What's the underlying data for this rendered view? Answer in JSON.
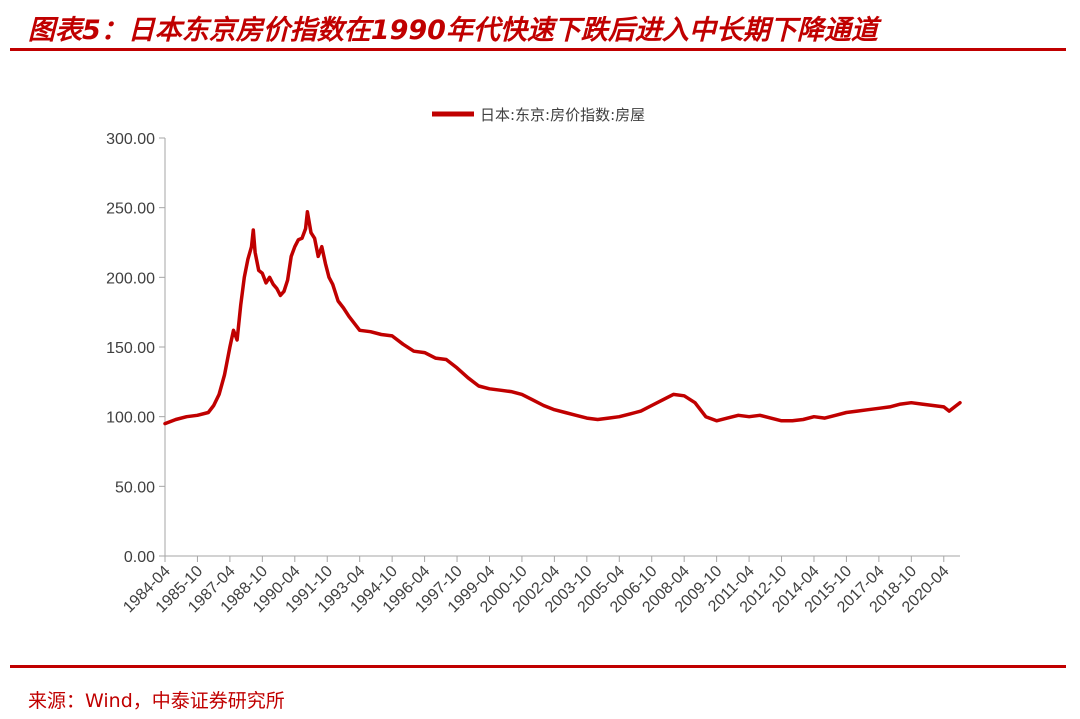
{
  "header": {
    "title": "图表5：日本东京房价指数在1990年代快速下跌后进入中长期下降通道"
  },
  "footer": {
    "source": "来源：Wind，中泰证券研究所"
  },
  "colors": {
    "accent": "#c00000",
    "axis": "#a6a6a6",
    "text": "#404040"
  },
  "chart_data": {
    "type": "line",
    "legend": {
      "position": "top-center"
    },
    "ylim": [
      0,
      300
    ],
    "yticks": [
      "0.00",
      "50.00",
      "100.00",
      "150.00",
      "200.00",
      "250.00",
      "300.00"
    ],
    "xlim": [
      "1984-04",
      "2021-01"
    ],
    "xticks": [
      "1984-04",
      "1985-10",
      "1987-04",
      "1988-10",
      "1990-04",
      "1991-10",
      "1993-04",
      "1994-10",
      "1996-04",
      "1997-10",
      "1999-04",
      "2000-10",
      "2002-04",
      "2003-10",
      "2005-04",
      "2006-10",
      "2008-04",
      "2009-10",
      "2011-04",
      "2012-10",
      "2014-04",
      "2015-10",
      "2017-04",
      "2018-10",
      "2020-04"
    ],
    "grid": false,
    "series": [
      {
        "name": "日本:东京:房价指数:房屋",
        "color": "#c00000",
        "points": [
          [
            "1984-04",
            95
          ],
          [
            "1984-10",
            98
          ],
          [
            "1985-04",
            100
          ],
          [
            "1985-10",
            101
          ],
          [
            "1986-04",
            103
          ],
          [
            "1986-07",
            108
          ],
          [
            "1986-10",
            116
          ],
          [
            "1987-01",
            130
          ],
          [
            "1987-04",
            150
          ],
          [
            "1987-06",
            162
          ],
          [
            "1987-08",
            155
          ],
          [
            "1987-10",
            180
          ],
          [
            "1987-12",
            200
          ],
          [
            "1988-02",
            213
          ],
          [
            "1988-04",
            222
          ],
          [
            "1988-05",
            234
          ],
          [
            "1988-06",
            218
          ],
          [
            "1988-08",
            205
          ],
          [
            "1988-10",
            203
          ],
          [
            "1988-12",
            196
          ],
          [
            "1989-02",
            200
          ],
          [
            "1989-04",
            195
          ],
          [
            "1989-06",
            192
          ],
          [
            "1989-08",
            187
          ],
          [
            "1989-10",
            190
          ],
          [
            "1989-12",
            198
          ],
          [
            "1990-02",
            215
          ],
          [
            "1990-04",
            222
          ],
          [
            "1990-06",
            227
          ],
          [
            "1990-08",
            228
          ],
          [
            "1990-10",
            235
          ],
          [
            "1990-11",
            247
          ],
          [
            "1991-01",
            232
          ],
          [
            "1991-03",
            228
          ],
          [
            "1991-05",
            215
          ],
          [
            "1991-07",
            222
          ],
          [
            "1991-09",
            210
          ],
          [
            "1991-11",
            200
          ],
          [
            "1992-01",
            195
          ],
          [
            "1992-04",
            183
          ],
          [
            "1992-07",
            178
          ],
          [
            "1992-10",
            172
          ],
          [
            "1993-01",
            167
          ],
          [
            "1993-04",
            162
          ],
          [
            "1993-10",
            161
          ],
          [
            "1994-04",
            159
          ],
          [
            "1994-10",
            158
          ],
          [
            "1995-04",
            152
          ],
          [
            "1995-10",
            147
          ],
          [
            "1996-04",
            146
          ],
          [
            "1996-10",
            142
          ],
          [
            "1997-04",
            141
          ],
          [
            "1997-10",
            135
          ],
          [
            "1998-04",
            128
          ],
          [
            "1998-10",
            122
          ],
          [
            "1999-04",
            120
          ],
          [
            "1999-10",
            119
          ],
          [
            "2000-04",
            118
          ],
          [
            "2000-10",
            116
          ],
          [
            "2001-04",
            112
          ],
          [
            "2001-10",
            108
          ],
          [
            "2002-04",
            105
          ],
          [
            "2002-10",
            103
          ],
          [
            "2003-04",
            101
          ],
          [
            "2003-10",
            99
          ],
          [
            "2004-04",
            98
          ],
          [
            "2004-10",
            99
          ],
          [
            "2005-04",
            100
          ],
          [
            "2005-10",
            102
          ],
          [
            "2006-04",
            104
          ],
          [
            "2006-10",
            108
          ],
          [
            "2007-04",
            112
          ],
          [
            "2007-10",
            116
          ],
          [
            "2008-04",
            115
          ],
          [
            "2008-10",
            110
          ],
          [
            "2009-04",
            100
          ],
          [
            "2009-10",
            97
          ],
          [
            "2010-04",
            99
          ],
          [
            "2010-10",
            101
          ],
          [
            "2011-04",
            100
          ],
          [
            "2011-10",
            101
          ],
          [
            "2012-04",
            99
          ],
          [
            "2012-10",
            97
          ],
          [
            "2013-04",
            97
          ],
          [
            "2013-10",
            98
          ],
          [
            "2014-04",
            100
          ],
          [
            "2014-10",
            99
          ],
          [
            "2015-04",
            101
          ],
          [
            "2015-10",
            103
          ],
          [
            "2016-04",
            104
          ],
          [
            "2016-10",
            105
          ],
          [
            "2017-04",
            106
          ],
          [
            "2017-10",
            107
          ],
          [
            "2018-04",
            109
          ],
          [
            "2018-10",
            110
          ],
          [
            "2019-04",
            109
          ],
          [
            "2019-10",
            108
          ],
          [
            "2020-04",
            107
          ],
          [
            "2020-07",
            104
          ],
          [
            "2020-10",
            107
          ],
          [
            "2021-01",
            110
          ]
        ]
      }
    ]
  }
}
